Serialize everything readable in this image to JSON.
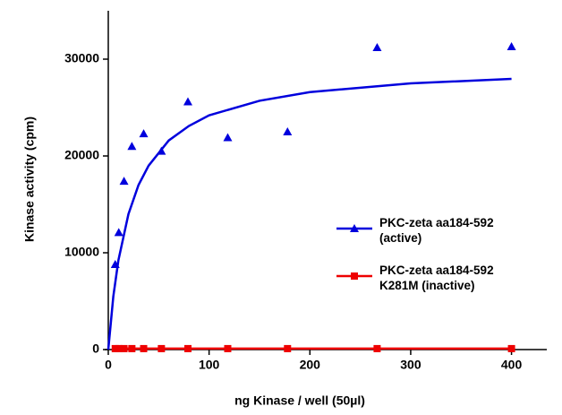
{
  "chart_data": {
    "type": "scatter",
    "x_label": "ng Kinase / well (50µl)",
    "y_label": "Kinase activity  (cpm)",
    "xlim": [
      0,
      435
    ],
    "ylim": [
      0,
      35000
    ],
    "xticks": [
      0,
      100,
      200,
      300,
      400
    ],
    "yticks": [
      0,
      10000,
      20000,
      30000
    ],
    "legend": "right",
    "series": [
      {
        "name": "PKC-zeta aa184-592 (active)",
        "color": "#0000dd",
        "marker": "triangle",
        "x": [
          6.9,
          10.4,
          15.6,
          23.4,
          35.1,
          52.7,
          79,
          118.5,
          177.8,
          266.7,
          400
        ],
        "values": [
          8800,
          12100,
          17400,
          21000,
          22300,
          20500,
          25600,
          21900,
          22500,
          31200,
          31300
        ],
        "fit_x": [
          0,
          5,
          10,
          20,
          30,
          40,
          60,
          80,
          100,
          150,
          200,
          300,
          400
        ],
        "fit_values": [
          0,
          5500,
          9200,
          14000,
          17000,
          19000,
          21600,
          23100,
          24200,
          25700,
          26600,
          27500,
          27960
        ]
      },
      {
        "name": "PKC-zeta aa184-592 K281M  (inactive)",
        "color": "#ee0000",
        "marker": "square",
        "x": [
          6.9,
          10.4,
          15.6,
          23.4,
          35.1,
          52.7,
          79,
          118.5,
          177.8,
          266.7,
          400
        ],
        "values": [
          100,
          100,
          100,
          100,
          100,
          100,
          100,
          100,
          100,
          100,
          100
        ]
      }
    ]
  }
}
